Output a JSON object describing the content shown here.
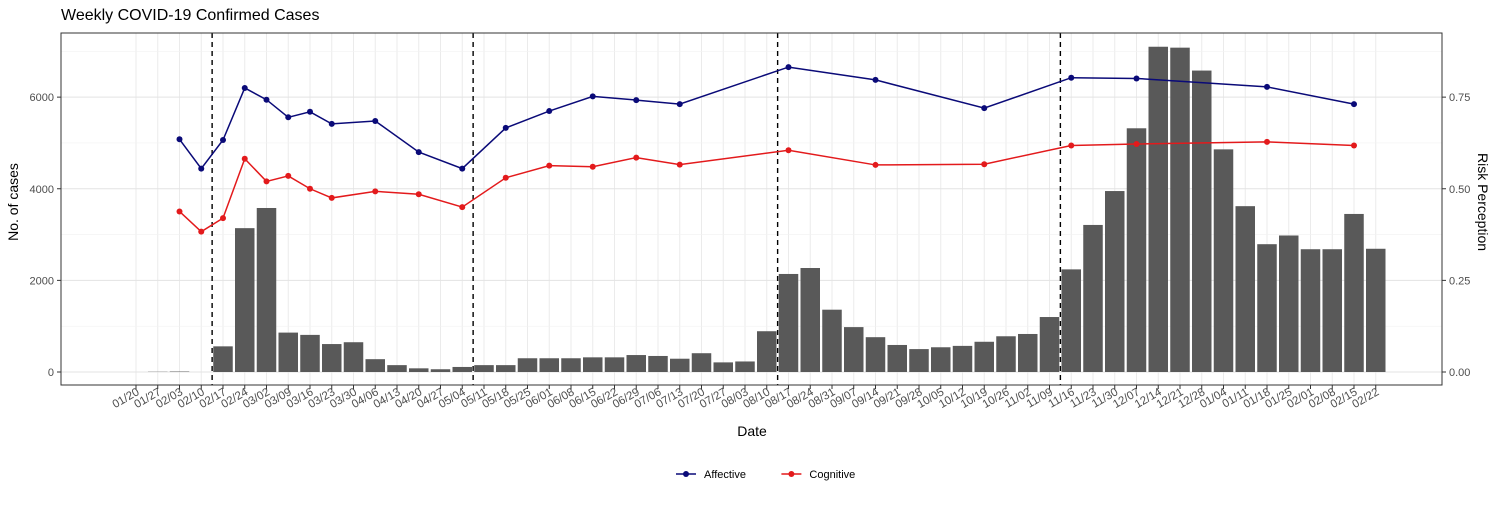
{
  "chart_data": {
    "type": "bar+line",
    "title": "Weekly COVID-19 Confirmed Cases",
    "xlabel": "Date",
    "ylabel": "No. of cases",
    "y2label": "Risk Perception",
    "ylim": [
      0,
      7400
    ],
    "y2lim": [
      0,
      0.925
    ],
    "yticks": [
      "0",
      "2000",
      "4000",
      "6000"
    ],
    "y2ticks": [
      "0.00",
      "0.25",
      "0.50",
      "0.75"
    ],
    "grid": true,
    "legend_position": "bottom",
    "categories": [
      "01/20",
      "01/27",
      "02/03",
      "02/10",
      "02/17",
      "02/24",
      "03/02",
      "03/09",
      "03/16",
      "03/23",
      "03/30",
      "04/06",
      "04/13",
      "04/20",
      "04/27",
      "05/04",
      "05/11",
      "05/18",
      "05/25",
      "06/01",
      "06/08",
      "06/15",
      "06/22",
      "06/29",
      "07/06",
      "07/13",
      "07/20",
      "07/27",
      "08/03",
      "08/10",
      "08/17",
      "08/24",
      "08/31",
      "09/07",
      "09/14",
      "09/21",
      "09/28",
      "10/05",
      "10/12",
      "10/19",
      "10/26",
      "11/02",
      "11/09",
      "11/16",
      "11/23",
      "11/30",
      "12/07",
      "12/14",
      "12/21",
      "12/28",
      "01/04",
      "01/11",
      "01/18",
      "01/25",
      "02/01",
      "02/08",
      "02/15",
      "02/22"
    ],
    "bars": {
      "name": "Confirmed cases",
      "color": "#595959",
      "values": [
        0,
        5,
        10,
        0,
        560,
        3140,
        3580,
        860,
        810,
        610,
        650,
        280,
        150,
        80,
        60,
        110,
        150,
        150,
        300,
        300,
        300,
        320,
        320,
        370,
        350,
        290,
        410,
        210,
        230,
        890,
        2140,
        2270,
        1360,
        980,
        760,
        590,
        500,
        540,
        570,
        660,
        780,
        830,
        1200,
        2240,
        3210,
        3950,
        5320,
        7100,
        7080,
        6580,
        4860,
        3620,
        2790,
        2980,
        2680,
        2680,
        3450,
        2690
      ]
    },
    "reference_lines": [
      "02/10",
      "05/04",
      "08/10",
      "11/09"
    ],
    "series": [
      {
        "name": "Affective",
        "color": "#0a0a78",
        "points": [
          {
            "x": "02/03",
            "y": 0.635
          },
          {
            "x": "02/10",
            "y": 0.555
          },
          {
            "x": "02/17",
            "y": 0.633
          },
          {
            "x": "02/24",
            "y": 0.775
          },
          {
            "x": "03/02",
            "y": 0.743
          },
          {
            "x": "03/09",
            "y": 0.695
          },
          {
            "x": "03/16",
            "y": 0.71
          },
          {
            "x": "03/23",
            "y": 0.677
          },
          {
            "x": "04/06",
            "y": 0.685
          },
          {
            "x": "04/20",
            "y": 0.6
          },
          {
            "x": "05/04",
            "y": 0.555
          },
          {
            "x": "05/18",
            "y": 0.666
          },
          {
            "x": "06/01",
            "y": 0.712
          },
          {
            "x": "06/15",
            "y": 0.752
          },
          {
            "x": "06/29",
            "y": 0.742
          },
          {
            "x": "07/13",
            "y": 0.731
          },
          {
            "x": "08/17",
            "y": 0.832
          },
          {
            "x": "09/14",
            "y": 0.797
          },
          {
            "x": "10/19",
            "y": 0.72
          },
          {
            "x": "11/16",
            "y": 0.803
          },
          {
            "x": "12/07",
            "y": 0.801
          },
          {
            "x": "01/18",
            "y": 0.778
          },
          {
            "x": "02/15",
            "y": 0.731
          }
        ]
      },
      {
        "name": "Cognitive",
        "color": "#e31a1c",
        "points": [
          {
            "x": "02/03",
            "y": 0.438
          },
          {
            "x": "02/10",
            "y": 0.383
          },
          {
            "x": "02/17",
            "y": 0.42
          },
          {
            "x": "02/24",
            "y": 0.582
          },
          {
            "x": "03/02",
            "y": 0.52
          },
          {
            "x": "03/09",
            "y": 0.535
          },
          {
            "x": "03/16",
            "y": 0.5
          },
          {
            "x": "03/23",
            "y": 0.475
          },
          {
            "x": "04/06",
            "y": 0.493
          },
          {
            "x": "04/20",
            "y": 0.485
          },
          {
            "x": "05/04",
            "y": 0.45
          },
          {
            "x": "05/18",
            "y": 0.53
          },
          {
            "x": "06/01",
            "y": 0.563
          },
          {
            "x": "06/15",
            "y": 0.56
          },
          {
            "x": "06/29",
            "y": 0.585
          },
          {
            "x": "07/13",
            "y": 0.566
          },
          {
            "x": "08/17",
            "y": 0.605
          },
          {
            "x": "09/14",
            "y": 0.565
          },
          {
            "x": "10/19",
            "y": 0.567
          },
          {
            "x": "11/16",
            "y": 0.618
          },
          {
            "x": "12/07",
            "y": 0.622
          },
          {
            "x": "01/18",
            "y": 0.628
          },
          {
            "x": "02/15",
            "y": 0.618
          }
        ]
      }
    ]
  }
}
